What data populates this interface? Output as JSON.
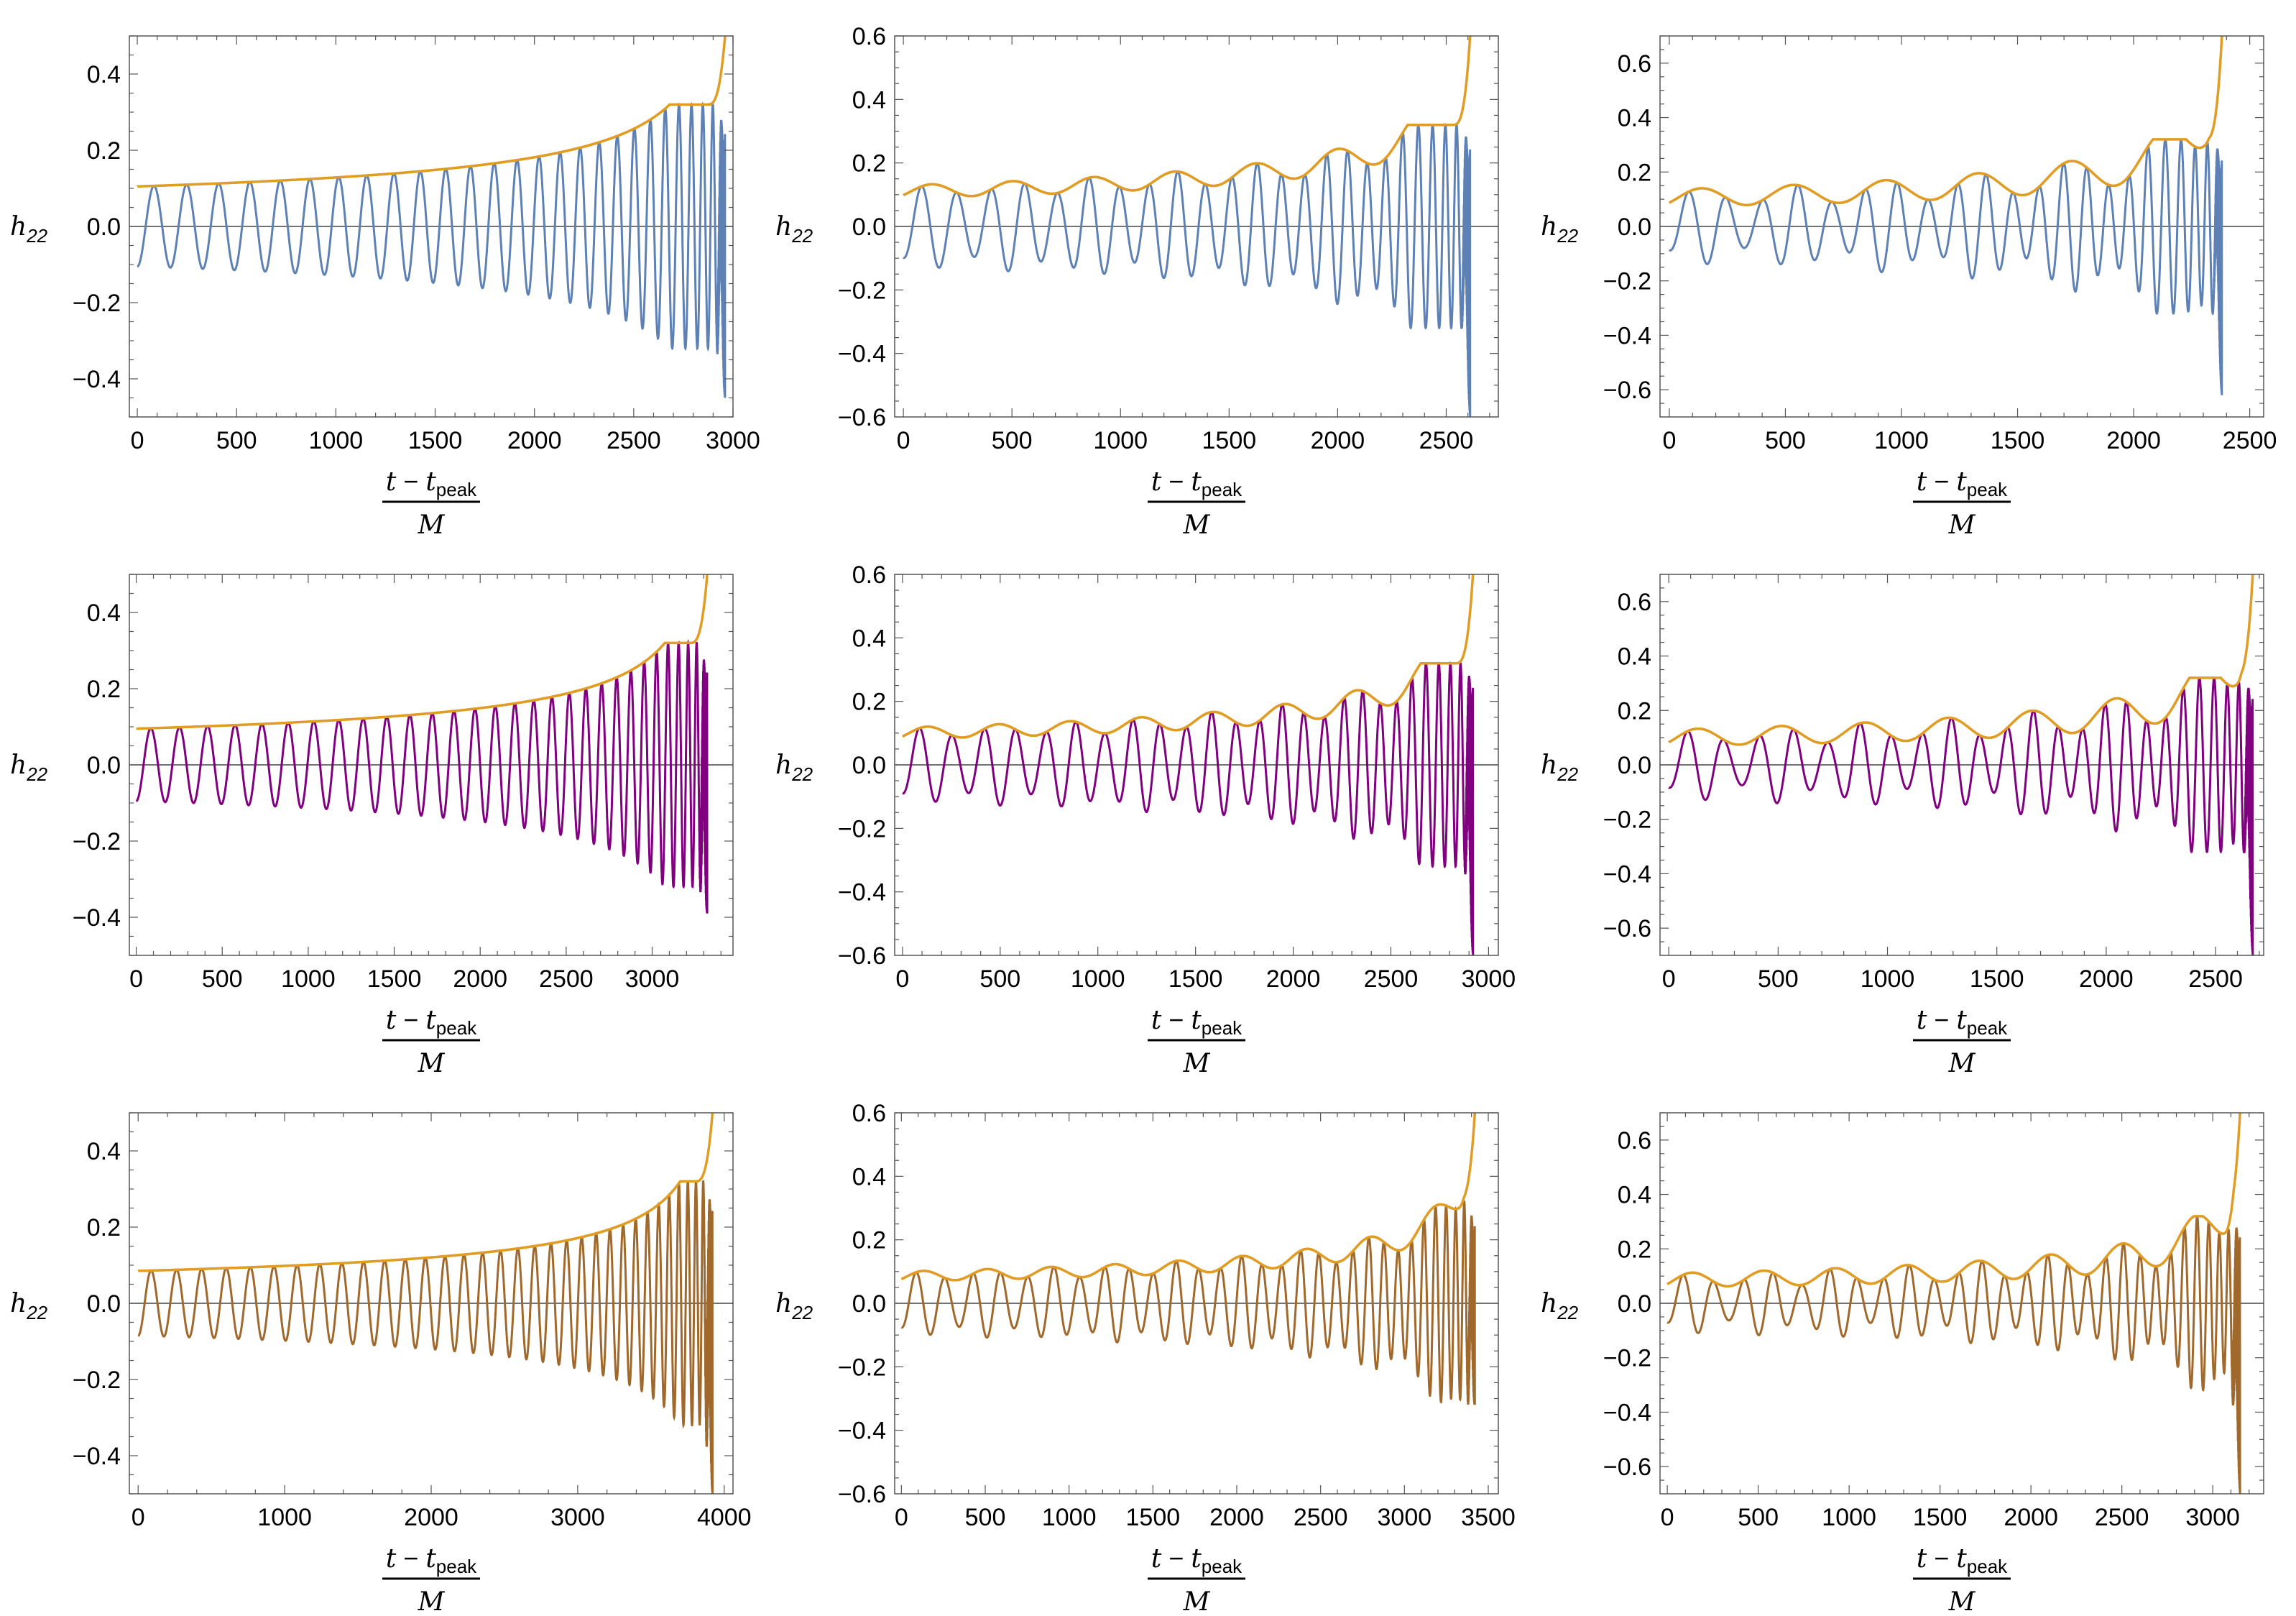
{
  "chart_data": [
    {
      "type": "line",
      "row": 0,
      "col": 0,
      "series_color": "#5e81b5",
      "envelope_color": "#e19c24",
      "x_range": [
        0,
        2960
      ],
      "xlim": [
        -40,
        3000
      ],
      "ylim": [
        -0.5,
        0.5
      ],
      "xticks": [
        0,
        500,
        1000,
        1500,
        2000,
        2500,
        3000
      ],
      "yticks": [
        -0.4,
        -0.2,
        0.0,
        0.2,
        0.4
      ],
      "cycles": 27,
      "ecc": 0,
      "ecc_bumps": 0,
      "amp0": 0.105,
      "amp_growth": 0.5,
      "min_tip": -0.45,
      "env_tip": 0.5,
      "ylabel": {
        "main": "h",
        "sub": "22"
      },
      "xlabel": {
        "num_t": "t",
        "num_minus": "−",
        "num_t2": "t",
        "num_sub": "peak",
        "den": "M"
      }
    },
    {
      "type": "line",
      "row": 0,
      "col": 1,
      "series_color": "#5e81b5",
      "envelope_color": "#e19c24",
      "x_range": [
        0,
        2610
      ],
      "xlim": [
        -40,
        2740
      ],
      "ylim": [
        -0.6,
        0.6
      ],
      "xticks": [
        0,
        500,
        1000,
        1500,
        2000,
        2500
      ],
      "yticks": [
        -0.6,
        -0.4,
        -0.2,
        0.0,
        0.2,
        0.4,
        0.6
      ],
      "cycles": 24,
      "ecc": 0.18,
      "ecc_bumps": 7,
      "amp0": 0.11,
      "amp_growth": 0.45,
      "min_tip": -0.6,
      "env_tip": 0.6,
      "ylabel": {
        "main": "h",
        "sub": "22"
      },
      "xlabel": {
        "num_t": "t",
        "num_minus": "−",
        "num_t2": "t",
        "num_sub": "peak",
        "den": "M"
      }
    },
    {
      "type": "line",
      "row": 0,
      "col": 2,
      "series_color": "#5e81b5",
      "envelope_color": "#e19c24",
      "x_range": [
        0,
        2380
      ],
      "xlim": [
        -40,
        2560
      ],
      "ylim": [
        -0.7,
        0.7
      ],
      "xticks": [
        0,
        500,
        1000,
        1500,
        2000,
        2500
      ],
      "yticks": [
        -0.6,
        -0.4,
        -0.2,
        0.0,
        0.2,
        0.4,
        0.6
      ],
      "cycles": 22,
      "ecc": 0.3,
      "ecc_bumps": 6,
      "amp0": 0.105,
      "amp_growth": 0.45,
      "min_tip": -0.62,
      "env_tip": 0.7,
      "ylabel": {
        "main": "h",
        "sub": "22"
      },
      "xlabel": {
        "num_t": "t",
        "num_minus": "−",
        "num_t2": "t",
        "num_sub": "peak",
        "den": "M"
      }
    },
    {
      "type": "line",
      "row": 1,
      "col": 0,
      "series_color": "#800080",
      "envelope_color": "#e19c24",
      "x_range": [
        0,
        3320
      ],
      "xlim": [
        -40,
        3470
      ],
      "ylim": [
        -0.5,
        0.5
      ],
      "xticks": [
        0,
        500,
        1000,
        1500,
        2000,
        2500,
        3000
      ],
      "yticks": [
        -0.4,
        -0.2,
        0.0,
        0.2,
        0.4
      ],
      "cycles": 30,
      "ecc": 0,
      "ecc_bumps": 0,
      "amp0": 0.095,
      "amp_growth": 0.5,
      "min_tip": -0.39,
      "env_tip": 0.5,
      "ylabel": {
        "main": "h",
        "sub": "22"
      },
      "xlabel": {
        "num_t": "t",
        "num_minus": "−",
        "num_t2": "t",
        "num_sub": "peak",
        "den": "M"
      }
    },
    {
      "type": "line",
      "row": 1,
      "col": 1,
      "series_color": "#800080",
      "envelope_color": "#e19c24",
      "x_range": [
        0,
        2920
      ],
      "xlim": [
        -40,
        3050
      ],
      "ylim": [
        -0.6,
        0.6
      ],
      "xticks": [
        0,
        500,
        1000,
        1500,
        2000,
        2500,
        3000
      ],
      "yticks": [
        -0.6,
        -0.4,
        -0.2,
        0.0,
        0.2,
        0.4,
        0.6
      ],
      "cycles": 26,
      "ecc": 0.18,
      "ecc_bumps": 8,
      "amp0": 0.1,
      "amp_growth": 0.45,
      "min_tip": -0.6,
      "env_tip": 0.6,
      "ylabel": {
        "main": "h",
        "sub": "22"
      },
      "xlabel": {
        "num_t": "t",
        "num_minus": "−",
        "num_t2": "t",
        "num_sub": "peak",
        "den": "M"
      }
    },
    {
      "type": "line",
      "row": 1,
      "col": 2,
      "series_color": "#800080",
      "envelope_color": "#e19c24",
      "x_range": [
        0,
        2670
      ],
      "xlim": [
        -40,
        2720
      ],
      "ylim": [
        -0.7,
        0.7
      ],
      "xticks": [
        0,
        500,
        1000,
        1500,
        2000,
        2500
      ],
      "yticks": [
        -0.6,
        -0.4,
        -0.2,
        0.0,
        0.2,
        0.4,
        0.6
      ],
      "cycles": 24,
      "ecc": 0.3,
      "ecc_bumps": 7,
      "amp0": 0.1,
      "amp_growth": 0.45,
      "min_tip": -0.7,
      "env_tip": 0.7,
      "ylabel": {
        "main": "h",
        "sub": "22"
      },
      "xlabel": {
        "num_t": "t",
        "num_minus": "−",
        "num_t2": "t",
        "num_sub": "peak",
        "den": "M"
      }
    },
    {
      "type": "line",
      "row": 2,
      "col": 0,
      "series_color": "#a0692b",
      "envelope_color": "#e19c24",
      "x_range": [
        0,
        3920
      ],
      "xlim": [
        -60,
        4060
      ],
      "ylim": [
        -0.5,
        0.5
      ],
      "xticks": [
        0,
        1000,
        2000,
        3000,
        4000
      ],
      "yticks": [
        -0.4,
        -0.2,
        0.0,
        0.2,
        0.4
      ],
      "cycles": 34,
      "ecc": 0,
      "ecc_bumps": 0,
      "amp0": 0.085,
      "amp_growth": 0.5,
      "min_tip": -0.5,
      "env_tip": 0.5,
      "ylabel": {
        "main": "h",
        "sub": "22"
      },
      "xlabel": {
        "num_t": "t",
        "num_minus": "−",
        "num_t2": "t",
        "num_sub": "peak",
        "den": "M"
      }
    },
    {
      "type": "line",
      "row": 2,
      "col": 1,
      "series_color": "#a0692b",
      "envelope_color": "#e19c24",
      "x_range": [
        0,
        3420
      ],
      "xlim": [
        -40,
        3560
      ],
      "ylim": [
        -0.6,
        0.6
      ],
      "xticks": [
        0,
        500,
        1000,
        1500,
        2000,
        2500,
        3000,
        3500
      ],
      "yticks": [
        -0.6,
        -0.4,
        -0.2,
        0.0,
        0.2,
        0.4,
        0.6
      ],
      "cycles": 30,
      "ecc": 0.18,
      "ecc_bumps": 9,
      "amp0": 0.085,
      "amp_growth": 0.45,
      "min_tip": -0.32,
      "env_tip": 0.6,
      "ylabel": {
        "main": "h",
        "sub": "22"
      },
      "xlabel": {
        "num_t": "t",
        "num_minus": "−",
        "num_t2": "t",
        "num_sub": "peak",
        "den": "M"
      }
    },
    {
      "type": "line",
      "row": 2,
      "col": 2,
      "series_color": "#a0692b",
      "envelope_color": "#e19c24",
      "x_range": [
        0,
        3150
      ],
      "xlim": [
        -40,
        3280
      ],
      "ylim": [
        -0.7,
        0.7
      ],
      "xticks": [
        0,
        500,
        1000,
        1500,
        2000,
        2500,
        3000
      ],
      "yticks": [
        -0.6,
        -0.4,
        -0.2,
        0.0,
        0.2,
        0.4,
        0.6
      ],
      "cycles": 28,
      "ecc": 0.3,
      "ecc_bumps": 8,
      "amp0": 0.085,
      "amp_growth": 0.45,
      "min_tip": -0.7,
      "env_tip": 0.7,
      "ylabel": {
        "main": "h",
        "sub": "22"
      },
      "xlabel": {
        "num_t": "t",
        "num_minus": "−",
        "num_t2": "t",
        "num_sub": "peak",
        "den": "M"
      }
    }
  ]
}
